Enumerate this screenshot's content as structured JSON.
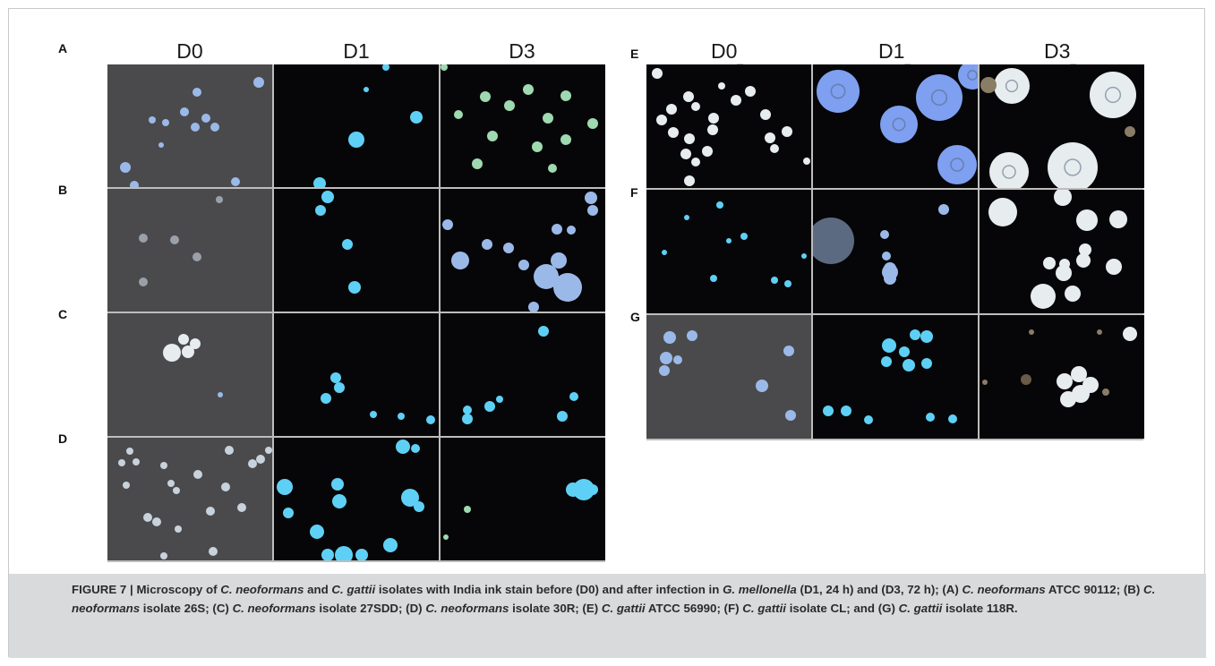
{
  "left": {
    "cols": [
      "D0",
      "D1",
      "D3"
    ],
    "rows": [
      "A",
      "B",
      "C",
      "D"
    ]
  },
  "right": {
    "cols": [
      "D0",
      "D1",
      "D3"
    ],
    "rows": [
      "E",
      "F",
      "G"
    ]
  },
  "caption": {
    "label": "FIGURE 7 | ",
    "p1": "Microscopy of ",
    "s1": "C. neoformans",
    "p2": " and ",
    "s2": "C. gattii",
    "p3": " isolates with India ink stain before (D0) and after infection in ",
    "s3": "G. mellonella",
    "p4": " (D1, 24 h) and (D3, 72 h); (A) ",
    "s4": "C. neoformans",
    "p5": " ATCC 90112; (B) ",
    "s5": "C. neoformans",
    "p6": " isolate 26S; (C) ",
    "s6": "C. neoformans",
    "p7": " isolate 27SDD; (D) ",
    "s7": "C. neoformans",
    "p8": " isolate 30R; (E) ",
    "s8": "C. gattii",
    "p9": " ATCC 56990; (F) ",
    "s9": "C. gattii",
    "p10": " isolate CL; and (G) ",
    "s10": "C. gattii",
    "p11": " isolate 118R."
  },
  "colors": {
    "grayBg": "#4a4a4c",
    "blackBg": "#060608",
    "cellBlue": "#9bb9e8",
    "cellCyan": "#5fd0f5",
    "cellGreen": "#9fd9b0",
    "cellWhite": "#e7ecef"
  }
}
